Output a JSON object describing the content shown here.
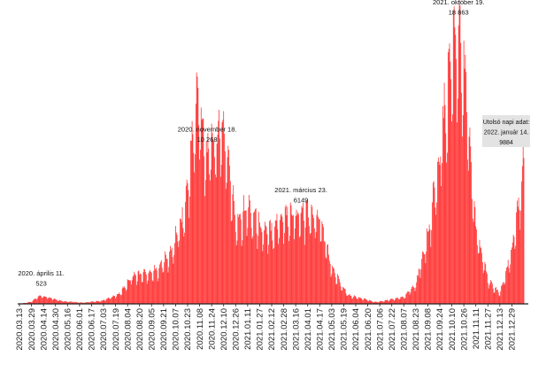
{
  "chart_data": {
    "type": "bar",
    "colors": {
      "bar": "#ff2b2b",
      "baseline": "#222222",
      "label_box": "#e3e3e3",
      "text": "#111111"
    },
    "date_range": [
      "2020.03.13",
      "2022.01.14"
    ],
    "ylim": [
      0,
      19500
    ],
    "grid": false,
    "legend": "none",
    "x_tick_labels": [
      "2020.03.13",
      "2020.03.29",
      "2020.04.14",
      "2020.04.30",
      "2020.05.16",
      "2020.06.01",
      "2020.06.17",
      "2020.07.03",
      "2020.07.19",
      "2020.08.04",
      "2020.08.20",
      "2020.09.05",
      "2020.09.21",
      "2020.10.07",
      "2020.10.23",
      "2020.11.08",
      "2020.11.24",
      "2020.12.10",
      "2020.12.26",
      "2021.01.11",
      "2021.01.27",
      "2021.02.12",
      "2021.02.28",
      "2021.03.16",
      "2021.04.01",
      "2021.04.17",
      "2021.05.03",
      "2021.05.19",
      "2021.06.04",
      "2021.06.20",
      "2021.07.06",
      "2021.07.22",
      "2021.08.07",
      "2021.08.23",
      "2021.09.08",
      "2021.09.24",
      "2021.10.10",
      "2021.10.26",
      "2021.11.11",
      "2021.11.27",
      "2021.12.13",
      "2021.12.29"
    ],
    "trend_points": [
      [
        "2020.03.13",
        0
      ],
      [
        "2020.03.29",
        150
      ],
      [
        "2020.04.06",
        450
      ],
      [
        "2020.04.11",
        523
      ],
      [
        "2020.04.22",
        420
      ],
      [
        "2020.05.10",
        180
      ],
      [
        "2020.06.05",
        80
      ],
      [
        "2020.07.01",
        200
      ],
      [
        "2020.07.25",
        700
      ],
      [
        "2020.08.10",
        1900
      ],
      [
        "2020.09.10",
        2200
      ],
      [
        "2020.10.01",
        3400
      ],
      [
        "2020.10.20",
        6500
      ],
      [
        "2020.11.05",
        14000
      ],
      [
        "2020.11.18",
        10268
      ],
      [
        "2020.12.10",
        12000
      ],
      [
        "2020.12.26",
        5600
      ],
      [
        "2021.01.11",
        6500
      ],
      [
        "2021.02.05",
        4700
      ],
      [
        "2021.02.28",
        6000
      ],
      [
        "2021.03.23",
        6149
      ],
      [
        "2021.04.17",
        5800
      ],
      [
        "2021.05.03",
        2400
      ],
      [
        "2021.05.25",
        600
      ],
      [
        "2021.07.01",
        120
      ],
      [
        "2021.08.07",
        450
      ],
      [
        "2021.08.23",
        1300
      ],
      [
        "2021.09.10",
        5000
      ],
      [
        "2021.09.24",
        10000
      ],
      [
        "2021.10.10",
        17000
      ],
      [
        "2021.10.19",
        18863
      ],
      [
        "2021.10.26",
        16000
      ],
      [
        "2021.11.11",
        5000
      ],
      [
        "2021.11.27",
        1600
      ],
      [
        "2021.12.13",
        700
      ],
      [
        "2021.12.29",
        3500
      ],
      [
        "2022.01.08",
        7000
      ],
      [
        "2022.01.14",
        9884
      ]
    ],
    "annotations": [
      {
        "lines": [
          "2020. április 11.",
          "523"
        ],
        "date": "2020.04.11",
        "value": 523
      },
      {
        "lines": [
          "2020. november 18.",
          "10 268"
        ],
        "date": "2020.11.18",
        "value": 10268
      },
      {
        "lines": [
          "2021. március 23.",
          "6149"
        ],
        "date": "2021.03.23",
        "value": 6149
      },
      {
        "lines": [
          "2021. október 19.",
          "18 863"
        ],
        "date": "2021.10.19",
        "value": 18863
      }
    ],
    "last_day_box": {
      "lines": [
        "Utolsó napi adat:",
        "2022. január 14.",
        "9884"
      ],
      "date": "2022.01.14",
      "value": 9884
    }
  }
}
